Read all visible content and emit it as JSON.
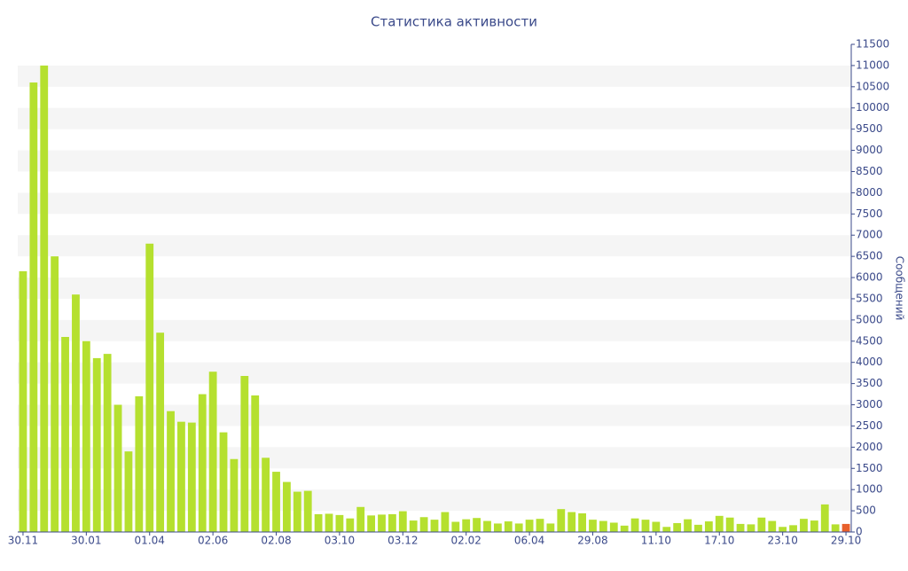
{
  "chart_data": {
    "type": "bar",
    "title": "Статистика активности",
    "y_label": "Сообщений",
    "categories": [
      "30.11",
      null,
      null,
      null,
      null,
      null,
      "30.01",
      null,
      null,
      null,
      null,
      null,
      "01.04",
      null,
      null,
      null,
      null,
      null,
      "02.06",
      null,
      null,
      null,
      null,
      null,
      "02.08",
      null,
      null,
      null,
      null,
      null,
      "03.10",
      null,
      null,
      null,
      null,
      null,
      "03.12",
      null,
      null,
      null,
      null,
      null,
      "02.02",
      null,
      null,
      null,
      null,
      null,
      "06.04",
      null,
      null,
      null,
      null,
      null,
      "29.08",
      null,
      null,
      null,
      null,
      null,
      "11.10",
      null,
      null,
      null,
      null,
      null,
      "17.10",
      null,
      null,
      null,
      null,
      null,
      "23.10",
      null,
      null,
      null,
      null,
      null,
      "29.10"
    ],
    "values": [
      6150,
      10600,
      11000,
      6500,
      4600,
      5600,
      4500,
      4100,
      4200,
      3000,
      1900,
      3200,
      6800,
      4700,
      2850,
      2600,
      2580,
      3250,
      3780,
      2350,
      1720,
      3680,
      3220,
      1750,
      1420,
      1180,
      950,
      970,
      420,
      430,
      400,
      320,
      590,
      390,
      410,
      420,
      490,
      270,
      350,
      290,
      470,
      240,
      300,
      330,
      260,
      200,
      250,
      200,
      290,
      310,
      200,
      540,
      470,
      440,
      290,
      260,
      220,
      150,
      320,
      290,
      240,
      120,
      210,
      300,
      170,
      250,
      380,
      340,
      190,
      180,
      340,
      260,
      120,
      160,
      310,
      270,
      650,
      180,
      190
    ],
    "colors": [
      "#b5e02f",
      "#b5e02f",
      "#b5e02f",
      "#b5e02f",
      "#b5e02f",
      "#b5e02f",
      "#b5e02f",
      "#b5e02f",
      "#b5e02f",
      "#b5e02f",
      "#b5e02f",
      "#b5e02f",
      "#b5e02f",
      "#b5e02f",
      "#b5e02f",
      "#b5e02f",
      "#b5e02f",
      "#b5e02f",
      "#b5e02f",
      "#b5e02f",
      "#b5e02f",
      "#b5e02f",
      "#b5e02f",
      "#b5e02f",
      "#b5e02f",
      "#b5e02f",
      "#b5e02f",
      "#b5e02f",
      "#b5e02f",
      "#b5e02f",
      "#b5e02f",
      "#b5e02f",
      "#b5e02f",
      "#b5e02f",
      "#b5e02f",
      "#b5e02f",
      "#b5e02f",
      "#b5e02f",
      "#b5e02f",
      "#b5e02f",
      "#b5e02f",
      "#b5e02f",
      "#b5e02f",
      "#b5e02f",
      "#b5e02f",
      "#b5e02f",
      "#b5e02f",
      "#b5e02f",
      "#b5e02f",
      "#b5e02f",
      "#b5e02f",
      "#b5e02f",
      "#b5e02f",
      "#b5e02f",
      "#b5e02f",
      "#b5e02f",
      "#b5e02f",
      "#b5e02f",
      "#b5e02f",
      "#b5e02f",
      "#b5e02f",
      "#b5e02f",
      "#b5e02f",
      "#b5e02f",
      "#b5e02f",
      "#b5e02f",
      "#b5e02f",
      "#b5e02f",
      "#b5e02f",
      "#b5e02f",
      "#b5e02f",
      "#b5e02f",
      "#b5e02f",
      "#b5e02f",
      "#b5e02f",
      "#b5e02f",
      "#b5e02f",
      "#b5e02f",
      "#e8602c"
    ],
    "ylim": [
      0,
      11500
    ],
    "yticks": [
      0,
      500,
      1000,
      1500,
      2000,
      2500,
      3000,
      3500,
      4000,
      4500,
      5000,
      5500,
      6000,
      6500,
      7000,
      7500,
      8000,
      8500,
      9000,
      9500,
      10000,
      10500,
      11000,
      11500
    ],
    "grid": "bands"
  }
}
